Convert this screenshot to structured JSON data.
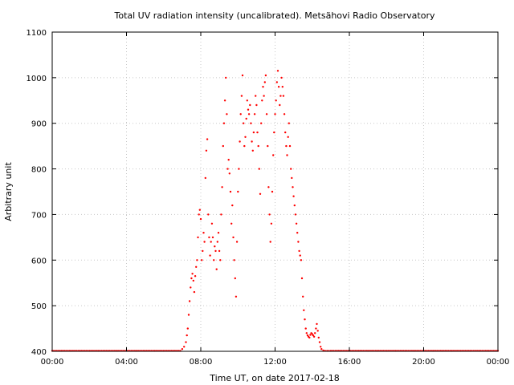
{
  "chart_data": {
    "type": "scatter",
    "title": "Total UV radiation intensity (uncalibrated). Metsähovi Radio Observatory",
    "xlabel": "Time UT, on date 2017-02-18",
    "ylabel": "Arbitrary unit",
    "x_unit": "hours UT",
    "xlim": [
      0,
      24
    ],
    "ylim": [
      400,
      1100
    ],
    "x_ticks": [
      {
        "value": 0,
        "label": "00:00"
      },
      {
        "value": 4,
        "label": "04:00"
      },
      {
        "value": 8,
        "label": "08:00"
      },
      {
        "value": 12,
        "label": "12:00"
      },
      {
        "value": 16,
        "label": "16:00"
      },
      {
        "value": 20,
        "label": "20:00"
      },
      {
        "value": 24,
        "label": "00:00"
      }
    ],
    "y_ticks": [
      400,
      500,
      600,
      700,
      800,
      900,
      1000,
      1100
    ],
    "grid": true,
    "marker_color": "#ff0000",
    "series": [
      {
        "name": "",
        "points": [
          [
            0.0,
            401
          ],
          [
            0.5,
            401
          ],
          [
            1.0,
            401
          ],
          [
            1.5,
            401
          ],
          [
            2.0,
            401
          ],
          [
            2.5,
            401
          ],
          [
            3.0,
            401
          ],
          [
            3.5,
            401
          ],
          [
            4.0,
            401
          ],
          [
            4.5,
            401
          ],
          [
            5.0,
            401
          ],
          [
            5.5,
            401
          ],
          [
            6.0,
            401
          ],
          [
            6.5,
            401
          ],
          [
            6.9,
            401
          ],
          [
            7.0,
            405
          ],
          [
            7.1,
            410
          ],
          [
            7.2,
            420
          ],
          [
            7.25,
            435
          ],
          [
            7.3,
            450
          ],
          [
            7.35,
            480
          ],
          [
            7.4,
            510
          ],
          [
            7.45,
            540
          ],
          [
            7.5,
            560
          ],
          [
            7.55,
            570
          ],
          [
            7.6,
            555
          ],
          [
            7.65,
            530
          ],
          [
            7.7,
            565
          ],
          [
            7.75,
            585
          ],
          [
            7.8,
            600
          ],
          [
            7.85,
            650
          ],
          [
            7.9,
            700
          ],
          [
            7.95,
            710
          ],
          [
            8.0,
            690
          ],
          [
            8.05,
            600
          ],
          [
            8.1,
            620
          ],
          [
            8.15,
            660
          ],
          [
            8.2,
            640
          ],
          [
            8.25,
            780
          ],
          [
            8.3,
            840
          ],
          [
            8.35,
            865
          ],
          [
            8.4,
            700
          ],
          [
            8.45,
            650
          ],
          [
            8.5,
            610
          ],
          [
            8.55,
            640
          ],
          [
            8.6,
            680
          ],
          [
            8.65,
            650
          ],
          [
            8.7,
            600
          ],
          [
            8.75,
            630
          ],
          [
            8.8,
            620
          ],
          [
            8.85,
            580
          ],
          [
            8.9,
            640
          ],
          [
            8.95,
            660
          ],
          [
            9.0,
            620
          ],
          [
            9.05,
            600
          ],
          [
            9.1,
            700
          ],
          [
            9.15,
            760
          ],
          [
            9.2,
            850
          ],
          [
            9.25,
            900
          ],
          [
            9.3,
            950
          ],
          [
            9.35,
            1000
          ],
          [
            9.4,
            920
          ],
          [
            9.45,
            800
          ],
          [
            9.5,
            820
          ],
          [
            9.55,
            790
          ],
          [
            9.6,
            750
          ],
          [
            9.65,
            680
          ],
          [
            9.7,
            720
          ],
          [
            9.75,
            650
          ],
          [
            9.8,
            600
          ],
          [
            9.85,
            560
          ],
          [
            9.9,
            520
          ],
          [
            9.95,
            640
          ],
          [
            10.0,
            750
          ],
          [
            10.05,
            800
          ],
          [
            10.1,
            860
          ],
          [
            10.15,
            920
          ],
          [
            10.2,
            960
          ],
          [
            10.25,
            1005
          ],
          [
            10.3,
            900
          ],
          [
            10.35,
            850
          ],
          [
            10.4,
            870
          ],
          [
            10.45,
            910
          ],
          [
            10.5,
            950
          ],
          [
            10.55,
            930
          ],
          [
            10.6,
            920
          ],
          [
            10.65,
            940
          ],
          [
            10.7,
            900
          ],
          [
            10.75,
            860
          ],
          [
            10.8,
            840
          ],
          [
            10.85,
            880
          ],
          [
            10.9,
            920
          ],
          [
            10.95,
            960
          ],
          [
            11.0,
            940
          ],
          [
            11.05,
            880
          ],
          [
            11.1,
            850
          ],
          [
            11.15,
            800
          ],
          [
            11.2,
            745
          ],
          [
            11.25,
            900
          ],
          [
            11.3,
            950
          ],
          [
            11.35,
            980
          ],
          [
            11.4,
            960
          ],
          [
            11.45,
            990
          ],
          [
            11.5,
            1005
          ],
          [
            11.55,
            920
          ],
          [
            11.6,
            850
          ],
          [
            11.65,
            760
          ],
          [
            11.7,
            700
          ],
          [
            11.75,
            640
          ],
          [
            11.8,
            680
          ],
          [
            11.85,
            750
          ],
          [
            11.9,
            830
          ],
          [
            11.95,
            880
          ],
          [
            12.0,
            920
          ],
          [
            12.05,
            950
          ],
          [
            12.1,
            990
          ],
          [
            12.15,
            1015
          ],
          [
            12.2,
            980
          ],
          [
            12.25,
            940
          ],
          [
            12.3,
            960
          ],
          [
            12.35,
            1000
          ],
          [
            12.4,
            980
          ],
          [
            12.45,
            960
          ],
          [
            12.5,
            920
          ],
          [
            12.55,
            880
          ],
          [
            12.6,
            850
          ],
          [
            12.65,
            830
          ],
          [
            12.7,
            870
          ],
          [
            12.75,
            900
          ],
          [
            12.8,
            850
          ],
          [
            12.85,
            800
          ],
          [
            12.9,
            780
          ],
          [
            12.95,
            760
          ],
          [
            13.0,
            740
          ],
          [
            13.05,
            720
          ],
          [
            13.1,
            700
          ],
          [
            13.15,
            680
          ],
          [
            13.2,
            660
          ],
          [
            13.25,
            640
          ],
          [
            13.3,
            620
          ],
          [
            13.35,
            610
          ],
          [
            13.4,
            600
          ],
          [
            13.45,
            560
          ],
          [
            13.5,
            520
          ],
          [
            13.55,
            490
          ],
          [
            13.6,
            470
          ],
          [
            13.65,
            450
          ],
          [
            13.7,
            440
          ],
          [
            13.75,
            435
          ],
          [
            13.8,
            432
          ],
          [
            13.85,
            430
          ],
          [
            13.9,
            436
          ],
          [
            13.95,
            440
          ],
          [
            14.0,
            438
          ],
          [
            14.05,
            435
          ],
          [
            14.1,
            432
          ],
          [
            14.15,
            440
          ],
          [
            14.2,
            450
          ],
          [
            14.25,
            460
          ],
          [
            14.3,
            445
          ],
          [
            14.35,
            430
          ],
          [
            14.4,
            420
          ],
          [
            14.45,
            410
          ],
          [
            14.5,
            405
          ],
          [
            14.6,
            402
          ],
          [
            14.8,
            401
          ],
          [
            15.0,
            401
          ],
          [
            15.5,
            401
          ],
          [
            16.0,
            401
          ],
          [
            16.5,
            401
          ],
          [
            17.0,
            401
          ],
          [
            17.5,
            401
          ],
          [
            18.0,
            401
          ],
          [
            18.5,
            401
          ],
          [
            19.0,
            401
          ],
          [
            19.5,
            401
          ],
          [
            20.0,
            401
          ],
          [
            20.5,
            401
          ],
          [
            21.0,
            401
          ],
          [
            21.5,
            401
          ],
          [
            22.0,
            401
          ],
          [
            22.5,
            401
          ],
          [
            23.0,
            401
          ],
          [
            23.5,
            401
          ],
          [
            24.0,
            401
          ]
        ]
      }
    ]
  }
}
